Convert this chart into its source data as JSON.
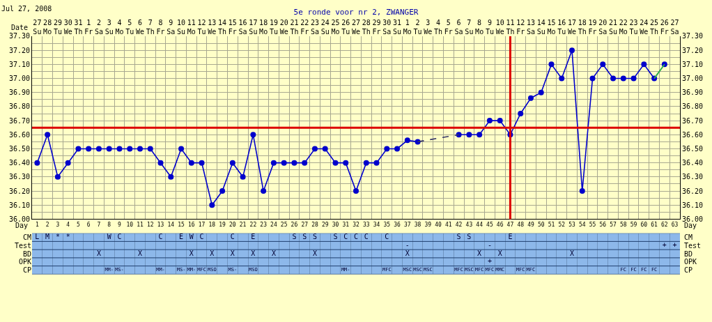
{
  "chart_data": [
    {
      "type": "line",
      "title": "5e ronde voor nr 2, ZWANGER",
      "subtitle": "Jul 27, 2008",
      "xlabel": "Day",
      "x2label": "Date",
      "x": [
        1,
        2,
        3,
        4,
        5,
        6,
        7,
        8,
        9,
        10,
        11,
        12,
        13,
        14,
        15,
        16,
        17,
        18,
        19,
        20,
        21,
        22,
        23,
        24,
        25,
        26,
        27,
        28,
        29,
        30,
        31,
        32,
        33,
        34,
        35,
        36,
        37,
        38,
        39,
        40,
        41,
        42,
        43,
        44,
        45,
        46,
        47,
        48,
        49,
        50,
        51,
        52,
        53,
        54,
        55,
        56,
        57,
        58,
        59,
        60,
        61,
        62
      ],
      "xlim": [
        0.5,
        63.5
      ],
      "xticks": [
        1,
        2,
        3,
        4,
        5,
        6,
        7,
        8,
        9,
        10,
        11,
        12,
        13,
        14,
        15,
        16,
        17,
        18,
        19,
        20,
        21,
        22,
        23,
        24,
        25,
        26,
        27,
        28,
        29,
        30,
        31,
        32,
        33,
        34,
        35,
        36,
        37,
        38,
        39,
        40,
        41,
        42,
        43,
        44,
        45,
        46,
        47,
        48,
        49,
        50,
        51,
        52,
        53,
        54,
        55,
        56,
        57,
        58,
        59,
        60,
        61,
        62,
        63
      ],
      "x2lim": [
        "2008-07-26T12:00",
        "2008-09-27T12:00"
      ],
      "x2ticks": [
        {
          "value": "2008-07-27",
          "label": "27\nSu"
        },
        {
          "value": "2008-07-28",
          "label": "28\nMo"
        },
        {
          "value": "2008-07-29",
          "label": "29\nTu"
        },
        {
          "value": "2008-07-30",
          "label": "30\nWe"
        },
        {
          "value": "2008-07-31",
          "label": "31\nTh"
        },
        {
          "value": "2008-08-01",
          "label": "1\nFr"
        },
        {
          "value": "2008-08-02",
          "label": "2\nSa"
        },
        {
          "value": "2008-08-03",
          "label": "3\nSu"
        },
        {
          "value": "2008-08-04",
          "label": "4\nMo"
        },
        {
          "value": "2008-08-05",
          "label": "5\nTu"
        },
        {
          "value": "2008-08-06",
          "label": "6\nWe"
        },
        {
          "value": "2008-08-07",
          "label": "7\nTh"
        },
        {
          "value": "2008-08-08",
          "label": "8\nFr"
        },
        {
          "value": "2008-08-09",
          "label": "9\nSa"
        },
        {
          "value": "2008-08-10",
          "label": "10\nSu"
        },
        {
          "value": "2008-08-11",
          "label": "11\nMo"
        },
        {
          "value": "2008-08-12",
          "label": "12\nTu"
        },
        {
          "value": "2008-08-13",
          "label": "13\nWe"
        },
        {
          "value": "2008-08-14",
          "label": "14\nTh"
        },
        {
          "value": "2008-08-15",
          "label": "15\nFr"
        },
        {
          "value": "2008-08-16",
          "label": "16\nSa"
        },
        {
          "value": "2008-08-17",
          "label": "17\nSu"
        },
        {
          "value": "2008-08-18",
          "label": "18\nMo"
        },
        {
          "value": "2008-08-19",
          "label": "19\nTu"
        },
        {
          "value": "2008-08-20",
          "label": "20\nWe"
        },
        {
          "value": "2008-08-21",
          "label": "21\nTh"
        },
        {
          "value": "2008-08-22",
          "label": "22\nFr"
        },
        {
          "value": "2008-08-23",
          "label": "23\nSa"
        },
        {
          "value": "2008-08-24",
          "label": "24\nSu"
        },
        {
          "value": "2008-08-25",
          "label": "25\nMo"
        },
        {
          "value": "2008-08-26",
          "label": "26\nTu"
        },
        {
          "value": "2008-08-27",
          "label": "27\nWe"
        },
        {
          "value": "2008-08-28",
          "label": "28\nTh"
        },
        {
          "value": "2008-08-29",
          "label": "29\nFr"
        },
        {
          "value": "2008-08-30",
          "label": "30\nSa"
        },
        {
          "value": "2008-08-31",
          "label": "31\nSu"
        },
        {
          "value": "2008-09-01",
          "label": "1\nMo"
        },
        {
          "value": "2008-09-02",
          "label": "2\nTu"
        },
        {
          "value": "2008-09-03",
          "label": "3\nWe"
        },
        {
          "value": "2008-09-04",
          "label": "4\nTh"
        },
        {
          "value": "2008-09-05",
          "label": "5\nFr"
        },
        {
          "value": "2008-09-06",
          "label": "6\nSa"
        },
        {
          "value": "2008-09-07",
          "label": "7\nSu"
        },
        {
          "value": "2008-09-08",
          "label": "8\nMo"
        },
        {
          "value": "2008-09-09",
          "label": "9\nTu"
        },
        {
          "value": "2008-09-10",
          "label": "10\nWe"
        },
        {
          "value": "2008-09-11",
          "label": "11\nTh"
        },
        {
          "value": "2008-09-12",
          "label": "12\nFr"
        },
        {
          "value": "2008-09-13",
          "label": "13\nSa"
        },
        {
          "value": "2008-09-14",
          "label": "14\nSu"
        },
        {
          "value": "2008-09-15",
          "label": "15\nMo"
        },
        {
          "value": "2008-09-16",
          "label": "16\nTu"
        },
        {
          "value": "2008-09-17",
          "label": "17\nWe"
        },
        {
          "value": "2008-09-18",
          "label": "18\nTh"
        },
        {
          "value": "2008-09-19",
          "label": "19\nFr"
        },
        {
          "value": "2008-09-20",
          "label": "20\nSa"
        },
        {
          "value": "2008-09-21",
          "label": "21\nSu"
        },
        {
          "value": "2008-09-22",
          "label": "22\nMo"
        },
        {
          "value": "2008-09-23",
          "label": "23\nTu"
        },
        {
          "value": "2008-09-24",
          "label": "24\nWe"
        },
        {
          "value": "2008-09-25",
          "label": "25\nTh"
        },
        {
          "value": "2008-09-26",
          "label": "26\nFr"
        },
        {
          "value": "2008-09-27",
          "label": "27\nSa"
        }
      ],
      "ylim": [
        36.0,
        37.3
      ],
      "yticks": [
        {
          "value": 36.0,
          "label": "36.00"
        },
        {
          "value": 36.1,
          "label": "36.10"
        },
        {
          "value": 36.2,
          "label": "36.20"
        },
        {
          "value": 36.3,
          "label": "36.30"
        },
        {
          "value": 36.4,
          "label": "36.40"
        },
        {
          "value": 36.5,
          "label": "36.50"
        },
        {
          "value": 36.6,
          "label": "36.60"
        },
        {
          "value": 36.7,
          "label": "36.70"
        },
        {
          "value": 36.8,
          "label": "36.80"
        },
        {
          "value": 36.9,
          "label": "36.90"
        },
        {
          "value": 37.0,
          "label": "37.00"
        },
        {
          "value": 37.1,
          "label": "37.10"
        },
        {
          "value": 37.2,
          "label": "37.20"
        },
        {
          "value": 37.3,
          "label": "37.30"
        }
      ],
      "y2lim": [
        36.0,
        37.3
      ],
      "y2ticks": [
        {
          "value": 36.0,
          "label": "36.00"
        },
        {
          "value": 36.1,
          "label": "36.10"
        },
        {
          "value": 36.2,
          "label": "36.20"
        },
        {
          "value": 36.3,
          "label": "36.30"
        },
        {
          "value": 36.4,
          "label": "36.40"
        },
        {
          "value": 36.5,
          "label": "36.50"
        },
        {
          "value": 36.6,
          "label": "36.60"
        },
        {
          "value": 36.7,
          "label": "36.70"
        },
        {
          "value": 36.8,
          "label": "36.80"
        },
        {
          "value": 36.9,
          "label": "36.90"
        },
        {
          "value": 37.0,
          "label": "37.00"
        },
        {
          "value": 37.1,
          "label": "37.10"
        },
        {
          "value": 37.2,
          "label": "37.20"
        },
        {
          "value": 37.3,
          "label": "37.30"
        }
      ],
      "series": [
        {
          "color": "#0000cc",
          "values": [
            36.4,
            36.6,
            36.3,
            36.4,
            36.5,
            36.5,
            36.5,
            36.5,
            36.5,
            36.5,
            36.5,
            36.5,
            36.4,
            36.3,
            36.5,
            36.4,
            36.4,
            36.1,
            36.2,
            36.4,
            36.3,
            36.6,
            36.2,
            36.4,
            36.4,
            36.4,
            36.4,
            36.5,
            36.5,
            36.4,
            36.4,
            36.2,
            36.4,
            36.4,
            36.5,
            36.5,
            36.56,
            36.55,
            null,
            null,
            null,
            36.6,
            36.6,
            36.6,
            36.7,
            36.7,
            36.6,
            36.75,
            36.86,
            36.9,
            37.1,
            37.0,
            37.2,
            36.2,
            37.0,
            37.1,
            37.0,
            37.0,
            37.0,
            37.1,
            37.0,
            37.1
          ]
        },
        {
          "color": "#333366",
          "x": [
            38,
            42
          ],
          "values": [
            36.55,
            36.6
          ],
          "line_style": "dashed",
          "marker": "none"
        },
        {
          "color": "#33cc33",
          "x": [
            61,
            62
          ],
          "values": [
            37.0,
            37.1
          ],
          "marker": "none"
        }
      ],
      "ref_lines": [
        {
          "axis": "y",
          "value": 36.65,
          "color": "#dd0000"
        },
        {
          "axis": "x",
          "value": 47,
          "color": "#dd0000"
        }
      ],
      "grid": true,
      "marker": "circle",
      "line_style": "solid"
    },
    {
      "type": "heatmap",
      "categories": [
        null,
        null,
        null,
        null,
        null,
        null,
        null,
        null,
        null,
        null,
        null,
        null,
        null,
        null,
        null,
        null,
        null,
        null,
        null,
        null,
        null,
        null,
        null,
        null,
        null,
        null,
        null,
        null,
        null,
        null,
        null,
        null,
        null,
        null,
        null,
        null,
        null,
        null,
        null,
        null,
        null,
        null,
        null,
        null,
        null,
        null,
        null,
        null,
        null,
        null,
        null,
        null,
        null,
        null,
        null,
        null,
        null,
        null,
        null,
        null,
        null,
        null,
        null
      ],
      "y_categories": [
        "CM",
        "Test",
        "BD",
        "OPK",
        "CP"
      ],
      "y2_categories": [
        "CM",
        "Test",
        "BD",
        "OPK",
        "CP"
      ],
      "cells": [
        [
          null,
          null,
          null,
          null,
          null,
          null,
          null,
          null,
          null,
          null,
          null,
          null,
          null,
          null,
          null,
          null,
          null,
          null,
          null,
          null,
          null,
          null,
          null,
          null,
          null,
          null,
          null,
          null,
          null,
          null,
          null,
          null,
          null,
          null,
          null,
          null,
          null,
          null,
          null,
          null,
          null,
          null,
          null,
          null,
          null,
          null,
          null,
          null,
          null,
          null,
          null,
          null,
          null,
          null,
          null,
          null,
          null,
          null,
          null,
          null,
          null,
          null,
          null
        ],
        [
          null,
          null,
          null,
          null,
          null,
          null,
          null,
          null,
          null,
          null,
          null,
          null,
          null,
          null,
          null,
          null,
          null,
          null,
          null,
          null,
          null,
          null,
          null,
          null,
          null,
          null,
          null,
          null,
          null,
          null,
          null,
          null,
          null,
          null,
          null,
          null,
          null,
          null,
          null,
          null,
          null,
          null,
          null,
          null,
          null,
          null,
          null,
          null,
          null,
          null,
          null,
          null,
          null,
          null,
          null,
          null,
          null,
          null,
          null,
          null,
          null,
          null,
          null
        ],
        [
          null,
          null,
          null,
          null,
          null,
          null,
          null,
          null,
          null,
          null,
          null,
          null,
          null,
          null,
          null,
          null,
          null,
          null,
          null,
          null,
          null,
          null,
          null,
          null,
          null,
          null,
          null,
          null,
          null,
          null,
          null,
          null,
          null,
          null,
          null,
          null,
          null,
          null,
          null,
          null,
          null,
          null,
          null,
          null,
          null,
          null,
          null,
          null,
          null,
          null,
          null,
          null,
          null,
          null,
          null,
          null,
          null,
          null,
          null,
          null,
          null,
          null,
          null
        ],
        [
          null,
          null,
          null,
          null,
          null,
          null,
          null,
          null,
          null,
          null,
          null,
          null,
          null,
          null,
          null,
          null,
          null,
          null,
          null,
          null,
          null,
          null,
          null,
          null,
          null,
          null,
          null,
          null,
          null,
          null,
          null,
          null,
          null,
          null,
          null,
          null,
          null,
          null,
          null,
          null,
          null,
          null,
          null,
          null,
          null,
          null,
          null,
          null,
          null,
          null,
          null,
          null,
          null,
          null,
          null,
          null,
          null,
          null,
          null,
          null,
          null,
          null,
          null
        ],
        [
          null,
          null,
          null,
          null,
          null,
          null,
          null,
          null,
          null,
          null,
          null,
          null,
          null,
          null,
          null,
          null,
          null,
          null,
          null,
          null,
          null,
          null,
          null,
          null,
          null,
          null,
          null,
          null,
          null,
          null,
          null,
          null,
          null,
          null,
          null,
          null,
          null,
          null,
          null,
          null,
          null,
          null,
          null,
          null,
          null,
          null,
          null,
          null,
          null,
          null,
          null,
          null,
          null,
          null,
          null,
          null,
          null,
          null,
          null,
          null,
          null,
          null,
          null
        ]
      ],
      "cell_labels": [
        [
          "L",
          "M",
          "*",
          "*",
          null,
          null,
          null,
          "W",
          "C",
          null,
          null,
          null,
          "C",
          null,
          "E",
          "W",
          "C",
          null,
          null,
          "C",
          null,
          "E",
          null,
          null,
          null,
          "S",
          "S",
          "S",
          null,
          "S",
          "C",
          "C",
          "C",
          null,
          "C",
          null,
          null,
          null,
          null,
          null,
          null,
          "S",
          "S",
          null,
          null,
          null,
          "E",
          null,
          null,
          null,
          null,
          null,
          null,
          null,
          null,
          null,
          null,
          null,
          null,
          null,
          null,
          null,
          null
        ],
        [
          null,
          null,
          null,
          null,
          null,
          null,
          null,
          null,
          null,
          null,
          null,
          null,
          null,
          null,
          null,
          null,
          null,
          null,
          null,
          null,
          null,
          null,
          null,
          null,
          null,
          null,
          null,
          null,
          null,
          null,
          null,
          null,
          null,
          null,
          null,
          null,
          "-",
          null,
          null,
          null,
          null,
          null,
          null,
          null,
          "-",
          null,
          null,
          null,
          null,
          null,
          null,
          null,
          null,
          null,
          null,
          null,
          null,
          null,
          null,
          null,
          null,
          "+",
          "+"
        ],
        [
          null,
          null,
          null,
          null,
          null,
          null,
          "X",
          null,
          null,
          null,
          "X",
          null,
          null,
          null,
          null,
          "X",
          null,
          "X",
          null,
          "X",
          null,
          "X",
          null,
          "X",
          null,
          null,
          null,
          "X",
          null,
          null,
          null,
          null,
          null,
          null,
          null,
          null,
          "X",
          null,
          null,
          null,
          null,
          null,
          null,
          "X",
          null,
          "X",
          null,
          null,
          null,
          null,
          null,
          null,
          "X",
          null,
          null,
          null,
          null,
          null,
          null,
          null,
          null,
          null,
          null
        ],
        [
          null,
          null,
          null,
          null,
          null,
          null,
          null,
          null,
          null,
          null,
          null,
          null,
          null,
          null,
          null,
          null,
          null,
          null,
          null,
          null,
          null,
          null,
          null,
          null,
          null,
          null,
          null,
          null,
          null,
          null,
          null,
          null,
          null,
          null,
          null,
          null,
          null,
          null,
          null,
          null,
          null,
          null,
          null,
          null,
          "+",
          null,
          null,
          null,
          null,
          null,
          null,
          null,
          null,
          null,
          null,
          null,
          null,
          null,
          null,
          null,
          null,
          null,
          null
        ],
        [
          null,
          null,
          null,
          null,
          null,
          null,
          null,
          "MM-",
          "MS-",
          null,
          null,
          null,
          "MM-",
          null,
          "MS-",
          "MM-",
          "MFC",
          "MSO",
          null,
          "MS-",
          null,
          "MSO",
          null,
          null,
          null,
          null,
          null,
          null,
          null,
          null,
          "MM-",
          null,
          null,
          null,
          "MFC",
          null,
          "MSC",
          "MSC",
          "MSC",
          null,
          null,
          "MFC",
          "MSC",
          "MFC",
          "MFC",
          "MMC",
          null,
          "MFC",
          "MFC",
          null,
          null,
          null,
          null,
          null,
          null,
          null,
          null,
          "FC",
          "FC",
          "FC",
          "FC",
          null,
          null
        ]
      ]
    }
  ]
}
